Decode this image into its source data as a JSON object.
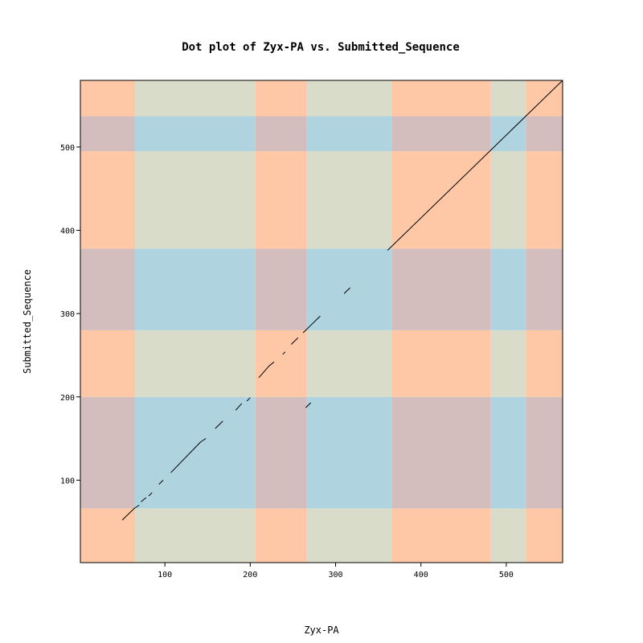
{
  "chart_data": {
    "type": "scatter",
    "subtype": "dot-plot",
    "title": "Dot plot of Zyx-PA vs. Submitted_Sequence",
    "xlabel": "Zyx-PA",
    "ylabel": "Submitted_Sequence",
    "xlim": [
      1,
      566
    ],
    "ylim": [
      1,
      580
    ],
    "x_ticks": [
      100,
      200,
      300,
      400,
      500
    ],
    "y_ticks": [
      100,
      200,
      300,
      400,
      500
    ],
    "grid": false,
    "legend": "none",
    "x_bands": [
      {
        "from": 1,
        "to": 65,
        "class": "A"
      },
      {
        "from": 65,
        "to": 206,
        "class": "B"
      },
      {
        "from": 206,
        "to": 266,
        "class": "A"
      },
      {
        "from": 266,
        "to": 366,
        "class": "B"
      },
      {
        "from": 366,
        "to": 482,
        "class": "A"
      },
      {
        "from": 482,
        "to": 523,
        "class": "B"
      },
      {
        "from": 523,
        "to": 566,
        "class": "A"
      }
    ],
    "y_bands": [
      {
        "from": 1,
        "to": 66,
        "class": "A"
      },
      {
        "from": 66,
        "to": 200,
        "class": "B"
      },
      {
        "from": 200,
        "to": 280,
        "class": "A"
      },
      {
        "from": 280,
        "to": 378,
        "class": "B"
      },
      {
        "from": 378,
        "to": 495,
        "class": "A"
      },
      {
        "from": 495,
        "to": 537,
        "class": "B"
      },
      {
        "from": 537,
        "to": 580,
        "class": "A"
      }
    ],
    "region_colors": {
      "AA": "#fec8a6",
      "AB": "#d4bdbd",
      "BA": "#d9dcc8",
      "BB": "#b0d3e0"
    },
    "line_color": "#000000",
    "segments": [
      {
        "x": [
          50,
          64
        ],
        "y": [
          52,
          66
        ]
      },
      {
        "x": [
          64,
          70
        ],
        "y": [
          66,
          70
        ]
      },
      {
        "x": [
          72,
          78
        ],
        "y": [
          74,
          79
        ]
      },
      {
        "x": [
          81,
          85
        ],
        "y": [
          81,
          85
        ]
      },
      {
        "x": [
          93,
          98
        ],
        "y": [
          95,
          100
        ]
      },
      {
        "x": [
          107,
          142
        ],
        "y": [
          109,
          146
        ]
      },
      {
        "x": [
          142,
          148
        ],
        "y": [
          146,
          150
        ]
      },
      {
        "x": [
          159,
          168
        ],
        "y": [
          162,
          171
        ]
      },
      {
        "x": [
          183,
          190
        ],
        "y": [
          184,
          192
        ]
      },
      {
        "x": [
          196,
          200
        ],
        "y": [
          195,
          199
        ]
      },
      {
        "x": [
          210,
          222
        ],
        "y": [
          223,
          237
        ]
      },
      {
        "x": [
          222,
          228
        ],
        "y": [
          237,
          242
        ]
      },
      {
        "x": [
          238,
          241
        ],
        "y": [
          251,
          254
        ]
      },
      {
        "x": [
          248,
          256
        ],
        "y": [
          263,
          271
        ]
      },
      {
        "x": [
          262,
          270
        ],
        "y": [
          277,
          285
        ]
      },
      {
        "x": [
          270,
          282
        ],
        "y": [
          285,
          297
        ]
      },
      {
        "x": [
          265,
          271
        ],
        "y": [
          187,
          193
        ]
      },
      {
        "x": [
          310,
          317
        ],
        "y": [
          324,
          331
        ]
      },
      {
        "x": [
          361,
          566
        ],
        "y": [
          376,
          580
        ]
      }
    ]
  }
}
